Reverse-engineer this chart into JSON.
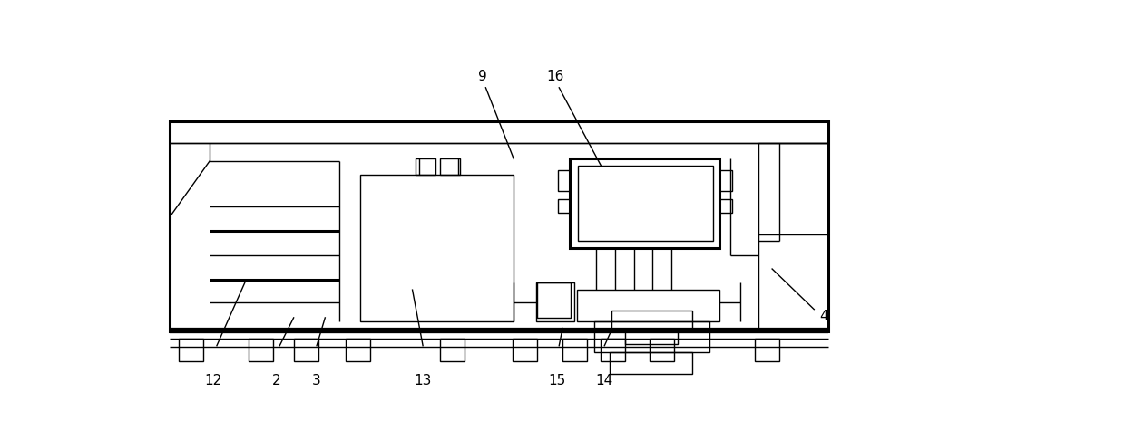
{
  "fig_width": 12.4,
  "fig_height": 4.86,
  "dpi": 100,
  "bg_color": "#ffffff",
  "line_color": "#000000",
  "lw": 1.0,
  "lw_thick": 2.2,
  "lw_vthick": 3.5
}
